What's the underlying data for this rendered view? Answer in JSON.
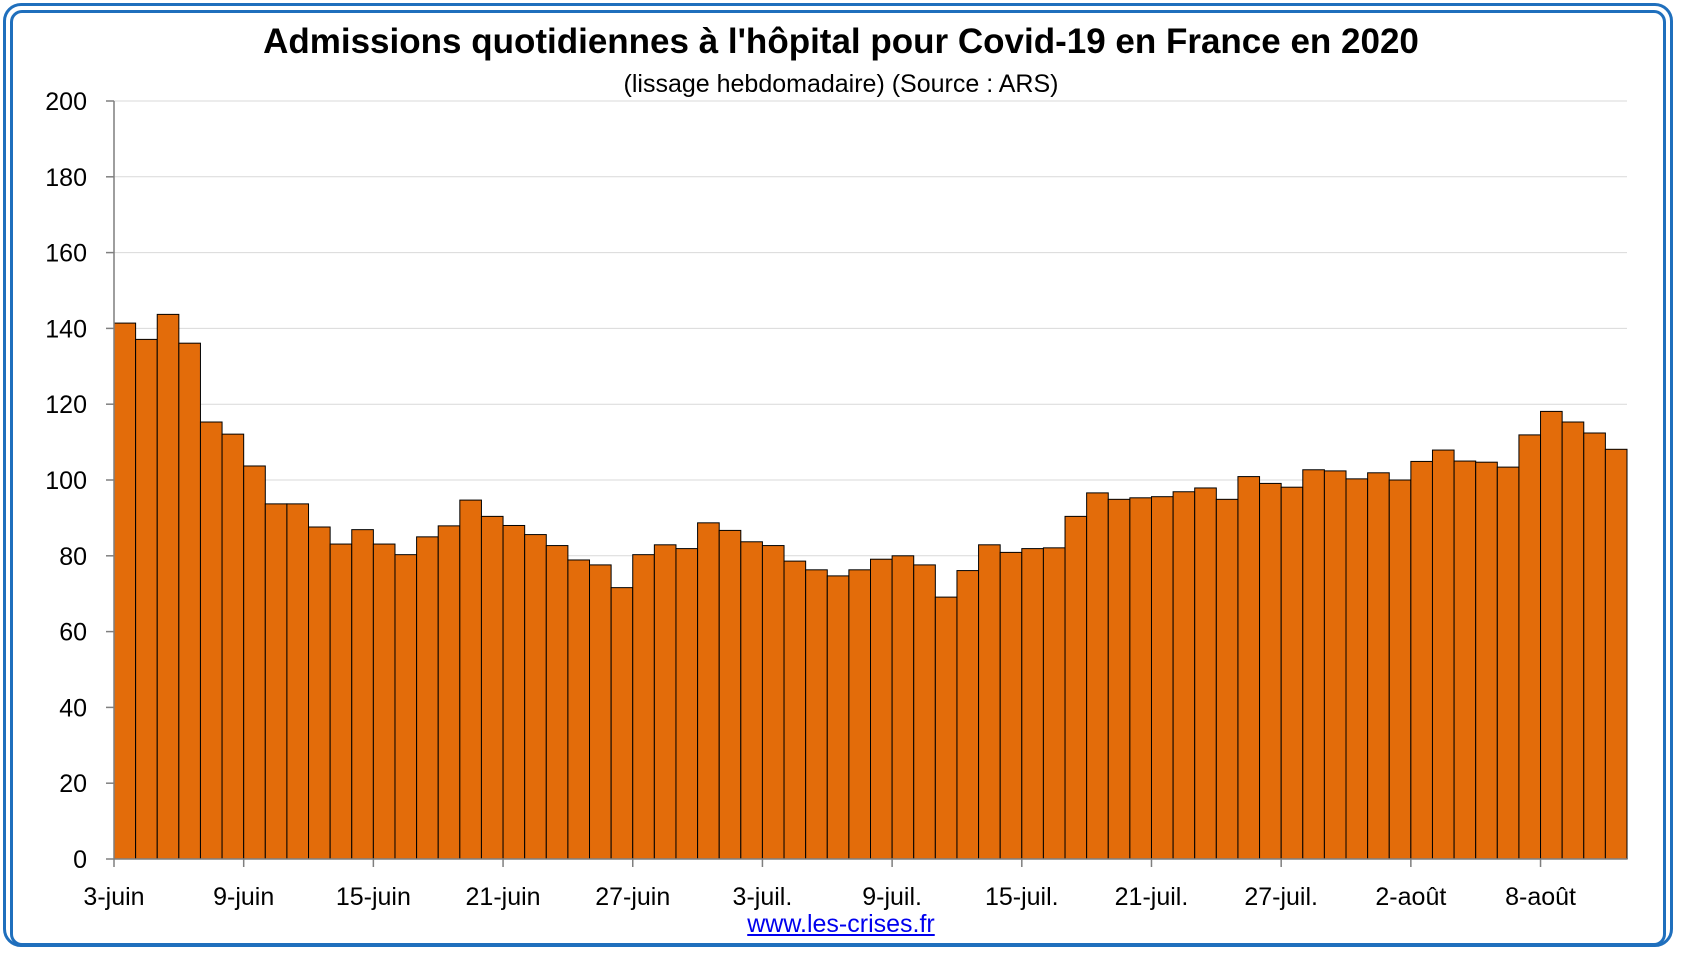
{
  "colors": {
    "frame": "#1f6fbd",
    "bar_fill": "#e36c0a",
    "bar_stroke": "#000000",
    "grid": "#d9d9d9",
    "axis": "#7f7f7f",
    "link": "#0000ee"
  },
  "chart": {
    "title": "Admissions quotidiennes à l'hôpital pour Covid-19 en France en 2020",
    "subtitle": "(lissage hebdomadaire) (Source : ARS)",
    "source_link": "www.les-crises.fr"
  },
  "chart_data": {
    "type": "bar",
    "title": "Admissions quotidiennes à l'hôpital pour Covid-19 en France en 2020",
    "subtitle": "(lissage hebdomadaire) (Source : ARS)",
    "xlabel": "",
    "ylabel": "",
    "ylim": [
      0,
      200
    ],
    "yticks": [
      0,
      20,
      40,
      60,
      80,
      100,
      120,
      140,
      160,
      180,
      200
    ],
    "grid": "horizontal",
    "legend": "none",
    "x_tick_labels": [
      {
        "index": 0,
        "label": "3-juin"
      },
      {
        "index": 6,
        "label": "9-juin"
      },
      {
        "index": 12,
        "label": "15-juin"
      },
      {
        "index": 18,
        "label": "21-juin"
      },
      {
        "index": 24,
        "label": "27-juin"
      },
      {
        "index": 30,
        "label": "3-juil."
      },
      {
        "index": 36,
        "label": "9-juil."
      },
      {
        "index": 42,
        "label": "15-juil."
      },
      {
        "index": 48,
        "label": "21-juil."
      },
      {
        "index": 54,
        "label": "27-juil."
      },
      {
        "index": 60,
        "label": "2-août"
      },
      {
        "index": 66,
        "label": "8-août"
      }
    ],
    "values": [
      141.4,
      137.1,
      143.7,
      136.1,
      115.3,
      112.1,
      103.7,
      93.7,
      93.7,
      87.6,
      83.1,
      86.9,
      83.1,
      80.3,
      85.0,
      87.9,
      94.7,
      90.4,
      88.0,
      85.6,
      82.7,
      78.9,
      77.6,
      71.6,
      80.3,
      82.9,
      81.9,
      88.7,
      86.7,
      83.7,
      82.7,
      78.6,
      76.3,
      74.7,
      76.3,
      79.1,
      80.0,
      77.6,
      69.1,
      76.1,
      82.9,
      80.9,
      81.9,
      82.1,
      90.4,
      96.6,
      94.9,
      95.3,
      95.6,
      96.9,
      97.9,
      94.9,
      100.9,
      99.1,
      98.1,
      102.7,
      102.4,
      100.3,
      101.9,
      100.0,
      104.9,
      107.9,
      105.0,
      104.7,
      103.4,
      111.9,
      118.1,
      115.3,
      112.4,
      108.1
    ]
  }
}
